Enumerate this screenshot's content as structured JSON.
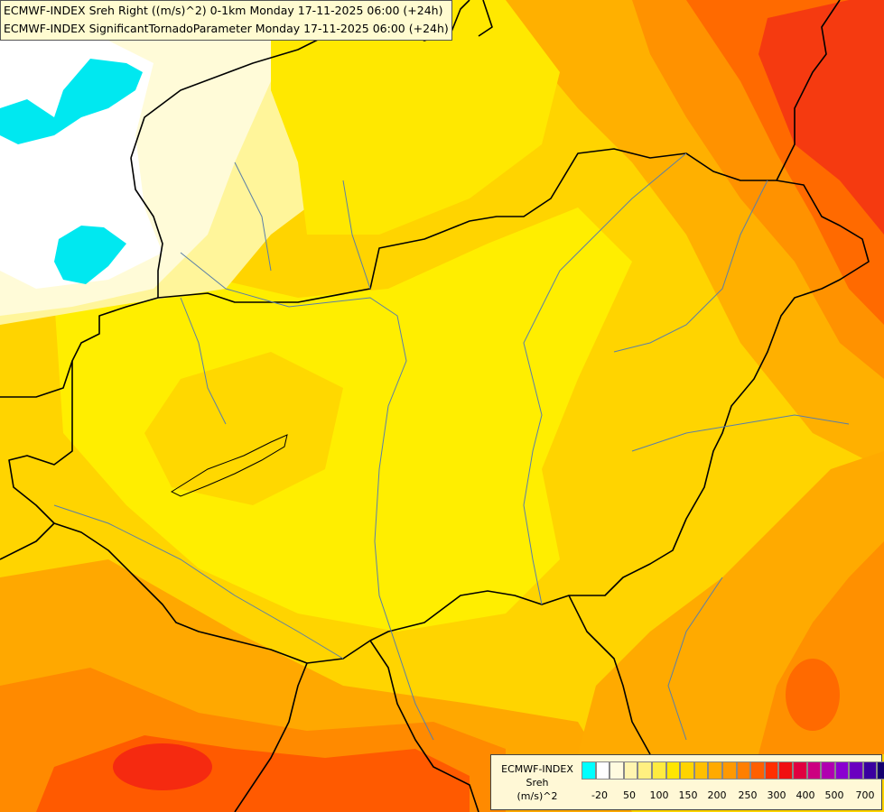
{
  "title": {
    "line1": "ECMWF-INDEX Sreh Right ((m/s)^2) 0-1km Monday 17-11-2025 06:00 (+24h)",
    "line2": "ECMWF-INDEX SignificantTornadoParameter Monday 17-11-2025 06:00 (+24h)"
  },
  "legend": {
    "model": "ECMWF-INDEX",
    "variable": "Sreh",
    "unit": "(m/s)^2",
    "colors": [
      "#00ffff",
      "#ffffff",
      "#fffbe0",
      "#fff5b0",
      "#fff080",
      "#ffeb40",
      "#ffe600",
      "#ffd400",
      "#ffbf00",
      "#ffaa00",
      "#ff9900",
      "#ff7f00",
      "#ff6000",
      "#ff3000",
      "#f01010",
      "#e00040",
      "#cc0080",
      "#b000b0",
      "#8a00d0",
      "#6a00c0",
      "#3a00a0",
      "#14006e"
    ],
    "ticks": [
      "-20",
      "50",
      "100",
      "150",
      "200",
      "250",
      "300",
      "400",
      "500",
      "700"
    ]
  },
  "map": {
    "field_colors": {
      "background": "#ffd400",
      "cyan": "#00e8f0",
      "white": "#ffffff",
      "pale": "#fffbe0",
      "pale_yellow": "#fff5a0",
      "yellow": "#ffee00",
      "gold": "#ffcc00",
      "orange": "#ffa800",
      "dark_orange": "#ff8800",
      "red_orange": "#ff5a00",
      "red": "#f52a10"
    },
    "border_color": "#000000",
    "river_color": "#5a7fa8"
  }
}
